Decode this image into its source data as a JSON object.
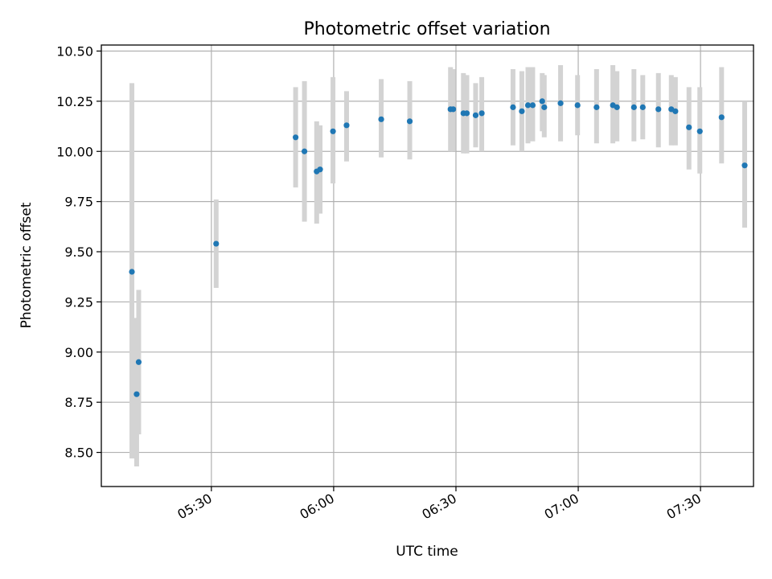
{
  "chart_data": {
    "type": "scatter",
    "title": "Photometric offset variation",
    "xlabel": "UTC time",
    "ylabel": "Photometric offset",
    "xlim": [
      "05:03",
      "07:43"
    ],
    "ylim": [
      8.33,
      10.53
    ],
    "x_ticks": [
      "05:30",
      "06:00",
      "06:30",
      "07:00",
      "07:30"
    ],
    "y_ticks": [
      "8.50",
      "8.75",
      "9.00",
      "9.25",
      "9.50",
      "9.75",
      "10.00",
      "10.25",
      "10.50"
    ],
    "grid": true,
    "colors": {
      "point": "#1f77b4",
      "errorbar": "#d3d3d3",
      "grid": "#b0b0b0"
    },
    "points": [
      {
        "x": "05:10:30",
        "y": 9.4,
        "ylow": 8.47,
        "yhigh": 10.34
      },
      {
        "x": "05:11:40",
        "y": 8.79,
        "ylow": 8.43,
        "yhigh": 9.17
      },
      {
        "x": "05:12:10",
        "y": 8.95,
        "ylow": 8.59,
        "yhigh": 9.31
      },
      {
        "x": "05:31:10",
        "y": 9.54,
        "ylow": 9.32,
        "yhigh": 9.76
      },
      {
        "x": "05:50:40",
        "y": 10.07,
        "ylow": 9.82,
        "yhigh": 10.32
      },
      {
        "x": "05:52:50",
        "y": 10.0,
        "ylow": 9.65,
        "yhigh": 10.35
      },
      {
        "x": "05:55:50",
        "y": 9.9,
        "ylow": 9.64,
        "yhigh": 10.15
      },
      {
        "x": "05:56:40",
        "y": 9.91,
        "ylow": 9.69,
        "yhigh": 10.13
      },
      {
        "x": "05:59:50",
        "y": 10.1,
        "ylow": 9.84,
        "yhigh": 10.37
      },
      {
        "x": "06:03:10",
        "y": 10.13,
        "ylow": 9.95,
        "yhigh": 10.3
      },
      {
        "x": "06:11:40",
        "y": 10.16,
        "ylow": 9.97,
        "yhigh": 10.36
      },
      {
        "x": "06:18:40",
        "y": 10.15,
        "ylow": 9.96,
        "yhigh": 10.35
      },
      {
        "x": "06:28:40",
        "y": 10.21,
        "ylow": 10.0,
        "yhigh": 10.42
      },
      {
        "x": "06:29:20",
        "y": 10.21,
        "ylow": 10.0,
        "yhigh": 10.41
      },
      {
        "x": "06:31:50",
        "y": 10.19,
        "ylow": 9.99,
        "yhigh": 10.39
      },
      {
        "x": "06:32:40",
        "y": 10.19,
        "ylow": 9.99,
        "yhigh": 10.38
      },
      {
        "x": "06:34:50",
        "y": 10.18,
        "ylow": 10.02,
        "yhigh": 10.34
      },
      {
        "x": "06:36:20",
        "y": 10.19,
        "ylow": 10.0,
        "yhigh": 10.37
      },
      {
        "x": "06:44:00",
        "y": 10.22,
        "ylow": 10.03,
        "yhigh": 10.41
      },
      {
        "x": "06:46:10",
        "y": 10.2,
        "ylow": 10.0,
        "yhigh": 10.4
      },
      {
        "x": "06:47:40",
        "y": 10.23,
        "ylow": 10.04,
        "yhigh": 10.42
      },
      {
        "x": "06:48:50",
        "y": 10.23,
        "ylow": 10.05,
        "yhigh": 10.42
      },
      {
        "x": "06:51:10",
        "y": 10.25,
        "ylow": 10.1,
        "yhigh": 10.39
      },
      {
        "x": "06:51:40",
        "y": 10.22,
        "ylow": 10.07,
        "yhigh": 10.38
      },
      {
        "x": "06:55:40",
        "y": 10.24,
        "ylow": 10.05,
        "yhigh": 10.43
      },
      {
        "x": "06:59:50",
        "y": 10.23,
        "ylow": 10.08,
        "yhigh": 10.38
      },
      {
        "x": "07:04:30",
        "y": 10.22,
        "ylow": 10.04,
        "yhigh": 10.41
      },
      {
        "x": "07:08:30",
        "y": 10.23,
        "ylow": 10.04,
        "yhigh": 10.43
      },
      {
        "x": "07:09:30",
        "y": 10.22,
        "ylow": 10.05,
        "yhigh": 10.4
      },
      {
        "x": "07:13:40",
        "y": 10.22,
        "ylow": 10.05,
        "yhigh": 10.41
      },
      {
        "x": "07:15:50",
        "y": 10.22,
        "ylow": 10.06,
        "yhigh": 10.38
      },
      {
        "x": "07:19:40",
        "y": 10.21,
        "ylow": 10.02,
        "yhigh": 10.39
      },
      {
        "x": "07:22:50",
        "y": 10.21,
        "ylow": 10.03,
        "yhigh": 10.38
      },
      {
        "x": "07:23:50",
        "y": 10.2,
        "ylow": 10.03,
        "yhigh": 10.37
      },
      {
        "x": "07:27:10",
        "y": 10.12,
        "ylow": 9.91,
        "yhigh": 10.32
      },
      {
        "x": "07:29:50",
        "y": 10.1,
        "ylow": 9.89,
        "yhigh": 10.32
      },
      {
        "x": "07:35:10",
        "y": 10.17,
        "ylow": 9.94,
        "yhigh": 10.42
      },
      {
        "x": "07:40:50",
        "y": 9.93,
        "ylow": 9.62,
        "yhigh": 10.25
      }
    ]
  }
}
